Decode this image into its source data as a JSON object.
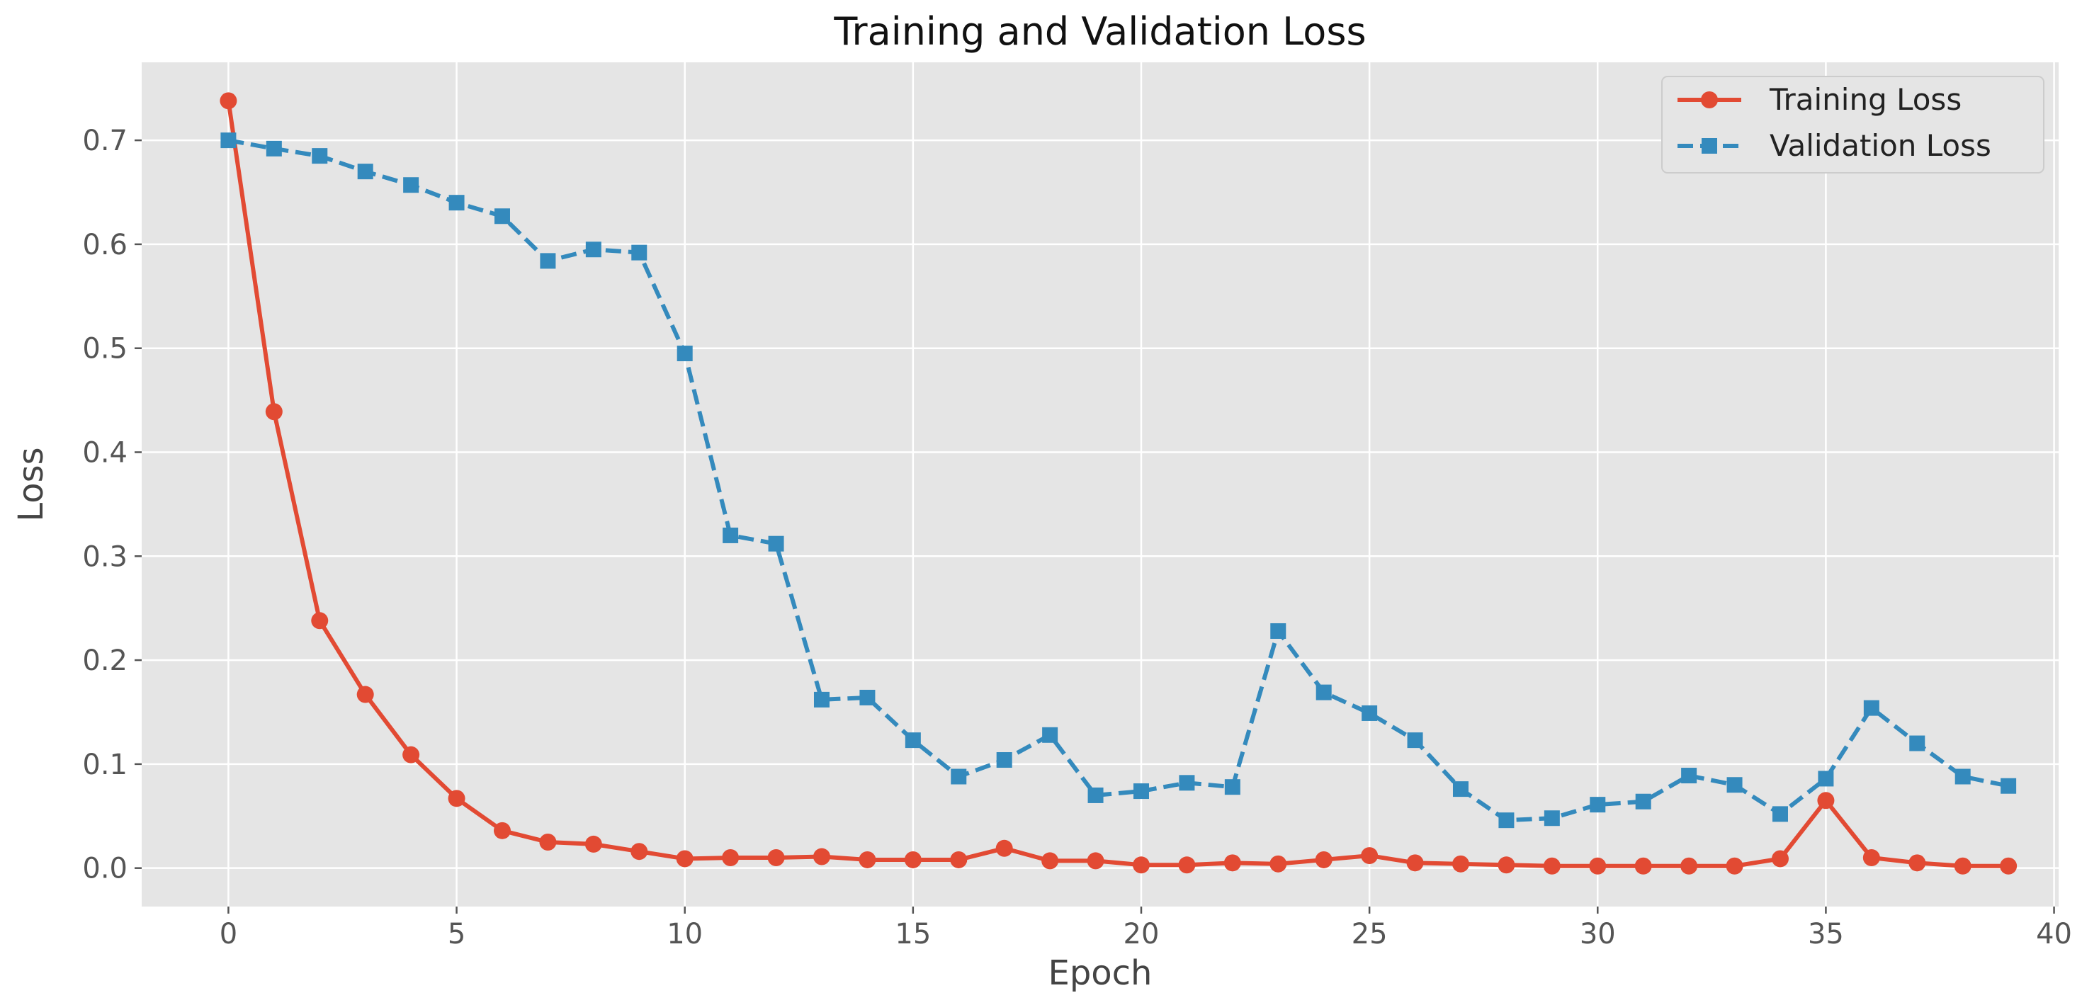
{
  "colors": {
    "plot_background": "#e5e5e5",
    "grid": "#ffffff",
    "training": "#e24a33",
    "validation": "#348abd"
  },
  "chart_data": {
    "type": "line",
    "title": "Training and Validation Loss",
    "xlabel": "Epoch",
    "ylabel": "Loss",
    "xlim": [
      -1.9,
      40.1
    ],
    "ylim": [
      -0.037,
      0.775
    ],
    "xticks": [
      0,
      5,
      10,
      15,
      20,
      25,
      30,
      35,
      40
    ],
    "xtick_labels": [
      "0",
      "5",
      "10",
      "15",
      "20",
      "25",
      "30",
      "35",
      "40"
    ],
    "yticks": [
      0.0,
      0.1,
      0.2,
      0.3,
      0.4,
      0.5,
      0.6,
      0.7
    ],
    "ytick_labels": [
      "0.0",
      "0.1",
      "0.2",
      "0.3",
      "0.4",
      "0.5",
      "0.6",
      "0.7"
    ],
    "grid": true,
    "legend_position": "top-right",
    "x": [
      0,
      1,
      2,
      3,
      4,
      5,
      6,
      7,
      8,
      9,
      10,
      11,
      12,
      13,
      14,
      15,
      16,
      17,
      18,
      19,
      20,
      21,
      22,
      23,
      24,
      25,
      26,
      27,
      28,
      29,
      30,
      31,
      32,
      33,
      34,
      35,
      36,
      37,
      38,
      39
    ],
    "series": [
      {
        "name": "Training Loss",
        "marker": "circle",
        "linestyle": "solid",
        "values": [
          0.738,
          0.439,
          0.238,
          0.167,
          0.109,
          0.067,
          0.036,
          0.025,
          0.023,
          0.016,
          0.009,
          0.01,
          0.01,
          0.011,
          0.008,
          0.008,
          0.008,
          0.019,
          0.007,
          0.007,
          0.003,
          0.003,
          0.005,
          0.004,
          0.008,
          0.012,
          0.005,
          0.004,
          0.003,
          0.002,
          0.002,
          0.002,
          0.002,
          0.002,
          0.009,
          0.065,
          0.01,
          0.005,
          0.002,
          0.002
        ]
      },
      {
        "name": "Validation Loss",
        "marker": "square",
        "linestyle": "dashed",
        "values": [
          0.7,
          0.692,
          0.685,
          0.67,
          0.657,
          0.64,
          0.627,
          0.584,
          0.595,
          0.592,
          0.495,
          0.32,
          0.312,
          0.162,
          0.164,
          0.123,
          0.088,
          0.104,
          0.128,
          0.07,
          0.074,
          0.082,
          0.078,
          0.228,
          0.169,
          0.149,
          0.123,
          0.076,
          0.046,
          0.048,
          0.061,
          0.064,
          0.089,
          0.08,
          0.052,
          0.086,
          0.154,
          0.12,
          0.088,
          0.079
        ]
      }
    ]
  }
}
